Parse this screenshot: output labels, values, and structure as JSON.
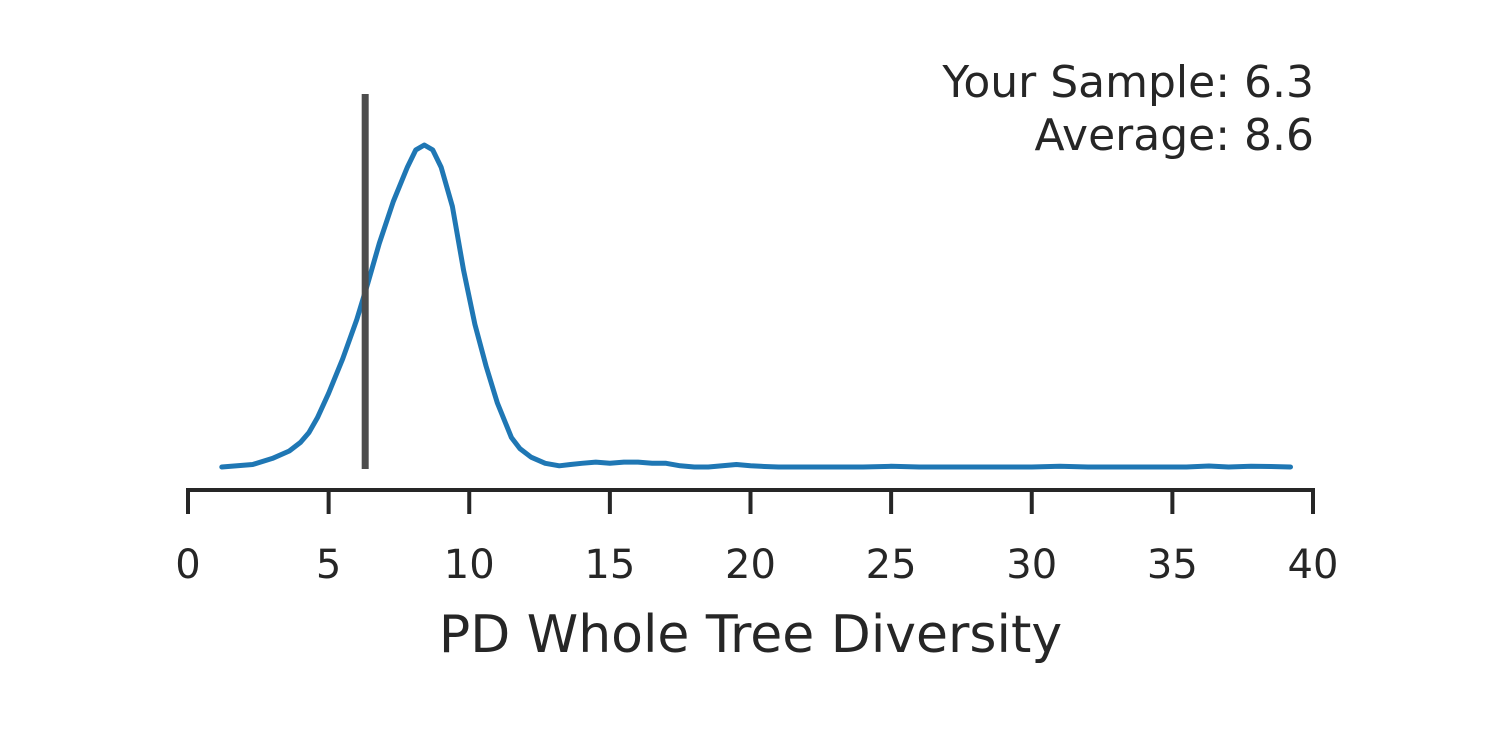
{
  "chart_data": {
    "type": "line",
    "title": "",
    "xlabel": "PD Whole Tree Diversity",
    "ylabel": "",
    "xlim": [
      0,
      40
    ],
    "x_ticks": [
      "0",
      "5",
      "10",
      "15",
      "20",
      "25",
      "30",
      "35",
      "40"
    ],
    "y_axis_visible": false,
    "grid": false,
    "annotation": {
      "lines": [
        "Your Sample: 6.3",
        "Average: 8.6"
      ],
      "placement": "top-right"
    },
    "marker": {
      "x": 6.3,
      "label": "Your Sample"
    },
    "average": 8.6,
    "colors": {
      "density": "#1f77b4",
      "marker": "#4d4d4d",
      "text": "#262626"
    },
    "series": [
      {
        "x": [
          1.2,
          2.3,
          3.0,
          3.6,
          4.0,
          4.3,
          4.6,
          5.0,
          5.5,
          6.0,
          6.4,
          6.8,
          7.3,
          7.8,
          8.1,
          8.4,
          8.7,
          9.0,
          9.4,
          9.8,
          10.2,
          10.6,
          11.0,
          11.5,
          11.8,
          12.2,
          12.7,
          13.2,
          13.6,
          14.0,
          14.5,
          15.0,
          15.5,
          16.0,
          16.5,
          17.0,
          17.5,
          18.0,
          18.5,
          19.0,
          19.5,
          20.0,
          20.5,
          21.0,
          22.0,
          23.0,
          24.0,
          25.0,
          26.0,
          28.0,
          30.0,
          31.0,
          32.0,
          34.0,
          35.5,
          36.3,
          37.0,
          37.8,
          38.5,
          39.2
        ],
        "y": [
          0.0,
          0.01,
          0.035,
          0.065,
          0.1,
          0.14,
          0.2,
          0.3,
          0.44,
          0.6,
          0.75,
          0.91,
          1.08,
          1.22,
          1.29,
          1.31,
          1.29,
          1.22,
          1.06,
          0.8,
          0.58,
          0.41,
          0.26,
          0.12,
          0.075,
          0.04,
          0.015,
          0.005,
          0.01,
          0.015,
          0.02,
          0.015,
          0.02,
          0.02,
          0.015,
          0.015,
          0.005,
          0.0,
          0.0,
          0.005,
          0.01,
          0.005,
          0.002,
          0.0,
          0.0,
          0.0,
          0.0,
          0.003,
          0.0,
          0.0,
          0.0,
          0.003,
          0.0,
          0.0,
          0.0,
          0.004,
          0.0,
          0.003,
          0.002,
          0.0
        ]
      }
    ]
  }
}
